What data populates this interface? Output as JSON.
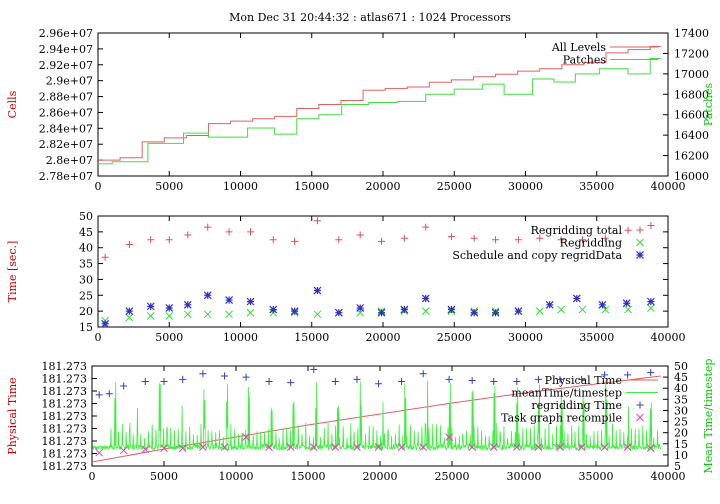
{
  "title": "Mon Dec 31 20:44:32 : atlas671 : 1024 Processors",
  "chart_data": [
    {
      "type": "line",
      "ylabel": "Cells",
      "y2label": "Patches",
      "ylabel_color": "#cc0000",
      "y2label_color": "#00cc00",
      "xlim": [
        0,
        40000
      ],
      "ylim": [
        27800000,
        29600000
      ],
      "y2lim": [
        16000,
        17400
      ],
      "xticks": [
        "0",
        "5000",
        "10000",
        "15000",
        "20000",
        "25000",
        "30000",
        "35000",
        "40000"
      ],
      "yticks": [
        "2.78e+07",
        "2.8e+07",
        "2.82e+07",
        "2.84e+07",
        "2.86e+07",
        "2.88e+07",
        "2.9e+07",
        "2.92e+07",
        "2.94e+07",
        "2.96e+07"
      ],
      "y2ticks": [
        "16000",
        "16200",
        "16400",
        "16600",
        "16800",
        "17000",
        "17200",
        "17400"
      ],
      "legend_position": "top-right",
      "series": [
        {
          "name": "All Levels",
          "axis": "left",
          "color": "#e06060",
          "step": true,
          "x": [
            0,
            1550,
            3100,
            4650,
            6200,
            7750,
            9300,
            10850,
            12400,
            13950,
            15500,
            17050,
            18600,
            20150,
            21700,
            23250,
            24800,
            26350,
            27900,
            29450,
            31000,
            32550,
            34100,
            35650,
            37200,
            38750,
            39500
          ],
          "y": [
            28000000,
            28030000,
            28230000,
            28280000,
            28310000,
            28460000,
            28490000,
            28520000,
            28550000,
            28650000,
            28700000,
            28750000,
            28880000,
            28900000,
            28920000,
            28980000,
            29010000,
            29050000,
            29080000,
            29120000,
            29150000,
            29200000,
            29230000,
            29350000,
            29390000,
            29430000,
            29430000
          ]
        },
        {
          "name": "Patches",
          "axis": "right",
          "color": "#40dd40",
          "step": true,
          "x": [
            0,
            1000,
            3500,
            6000,
            7750,
            10500,
            12400,
            13950,
            15500,
            17100,
            19000,
            21000,
            23000,
            25000,
            27000,
            28500,
            30500,
            32000,
            33500,
            35200,
            37200,
            38750,
            39500
          ],
          "y": [
            16120,
            16140,
            16320,
            16420,
            16380,
            16470,
            16410,
            16560,
            16600,
            16700,
            16720,
            16730,
            16800,
            16850,
            16900,
            16800,
            16950,
            16920,
            17000,
            17050,
            17000,
            17150,
            17150
          ]
        }
      ]
    },
    {
      "type": "scatter",
      "ylabel": "Time [sec.]",
      "ylabel_color": "#cc0000",
      "xlim": [
        0,
        40000
      ],
      "ylim": [
        15,
        50
      ],
      "xticks": [
        "0",
        "5000",
        "10000",
        "15000",
        "20000",
        "25000",
        "30000",
        "35000",
        "40000"
      ],
      "yticks": [
        "15",
        "20",
        "25",
        "30",
        "35",
        "40",
        "45",
        "50"
      ],
      "legend_position": "top-right",
      "series": [
        {
          "name": "Regridding total",
          "marker": "+",
          "color": "#e05050",
          "x": [
            500,
            2200,
            3700,
            5000,
            6300,
            7700,
            9200,
            10700,
            12300,
            13800,
            15400,
            16900,
            18400,
            19900,
            21500,
            23000,
            24800,
            26400,
            27900,
            29500,
            31000,
            32500,
            34000,
            35600,
            37200,
            38800
          ],
          "y": [
            37,
            41,
            42.5,
            42.5,
            44,
            46.5,
            45,
            45,
            42.5,
            42,
            48.5,
            42.5,
            44,
            42,
            43,
            46.5,
            43.5,
            43,
            42.5,
            42.5,
            43,
            42.5,
            42.5,
            43,
            45.5,
            47
          ]
        },
        {
          "name": "Regridding",
          "marker": "x",
          "color": "#30dd30",
          "x": [
            500,
            2200,
            3700,
            5000,
            6300,
            7700,
            9200,
            10700,
            12300,
            13800,
            15400,
            16900,
            18400,
            19900,
            21500,
            23000,
            24800,
            26400,
            27900,
            29500,
            31000,
            32500,
            34000,
            35600,
            37200,
            38800
          ],
          "y": [
            17,
            18,
            18.5,
            18.5,
            19,
            19,
            19,
            19.5,
            19.5,
            19.5,
            19,
            19.5,
            19.5,
            20,
            20,
            20,
            20,
            20,
            20,
            20,
            20,
            20.5,
            20.5,
            20.5,
            20.5,
            21
          ]
        },
        {
          "name": "Schedule and copy regridData",
          "marker": "*",
          "color": "#3030c0",
          "x": [
            500,
            2200,
            3700,
            5000,
            6300,
            7700,
            9200,
            10700,
            12300,
            13800,
            15400,
            16900,
            18400,
            19900,
            21500,
            23000,
            24800,
            26400,
            27900,
            29500,
            31700,
            33600,
            35400,
            37100,
            38800
          ],
          "y": [
            16,
            20,
            21.5,
            21,
            22,
            25,
            23.5,
            23,
            20.5,
            20,
            26.5,
            19.5,
            21,
            19.5,
            20.5,
            24,
            20.5,
            19.5,
            19.5,
            20,
            22,
            24,
            22,
            22.5,
            23
          ]
        }
      ]
    },
    {
      "type": "line",
      "ylabel": "Physical Time",
      "y2label": "Mean Time/timestep",
      "ylabel_color": "#cc0000",
      "y2label_color": "#00cc00",
      "xlim": [
        0,
        40000
      ],
      "y2lim": [
        5,
        50
      ],
      "xticks": [
        "0",
        "5000",
        "10000",
        "15000",
        "20000",
        "25000",
        "30000",
        "35000",
        "40000"
      ],
      "yticks": [
        "181.273",
        "181.273",
        "181.273",
        "181.273",
        "181.273",
        "181.273",
        "181.273",
        "181.273",
        "181.273"
      ],
      "y2ticks": [
        "5",
        "10",
        "15",
        "20",
        "25",
        "30",
        "35",
        "40",
        "45",
        "50"
      ],
      "legend_position": "top-right",
      "series": [
        {
          "name": "Physical Time",
          "axis": "left",
          "color": "#e06060",
          "x": [
            0,
            5000,
            10000,
            15000,
            20000,
            25000,
            30000,
            35000,
            39500
          ],
          "y_fraction": [
            0.04,
            0.17,
            0.29,
            0.41,
            0.52,
            0.63,
            0.73,
            0.82,
            0.9
          ]
        },
        {
          "name": "meanTime/timestep",
          "axis": "right",
          "color": "#40ee40",
          "baseline": 13.5,
          "spike_period": 260,
          "big_spike_interval": 1550,
          "big_spike_height": 30
        },
        {
          "name": "regridding Time",
          "marker": "+",
          "color": "#3040c0",
          "axis": "right",
          "x": [
            500,
            1200,
            2200,
            3700,
            5000,
            6300,
            7700,
            9200,
            10700,
            12300,
            13800,
            15400,
            16900,
            18400,
            19900,
            21500,
            23000,
            24800,
            26400,
            27900,
            29500,
            31000,
            32500,
            34000,
            35600,
            37200,
            38800
          ],
          "y": [
            37,
            37.5,
            41,
            43,
            43,
            44,
            46.5,
            45.5,
            45,
            43,
            42.5,
            48.5,
            43,
            44,
            42,
            43,
            46.5,
            44,
            43.5,
            43,
            43,
            44,
            44,
            44,
            46,
            46,
            47
          ]
        },
        {
          "name": "Task graph recompile",
          "marker": "x",
          "color": "#e040c0",
          "axis": "right",
          "x": [
            500,
            2200,
            3700,
            5000,
            6300,
            7700,
            9200,
            10700,
            12300,
            13800,
            15400,
            16900,
            18400,
            19900,
            21500,
            23000,
            24800,
            26400,
            27900,
            29500,
            31000,
            32500,
            34000,
            35600,
            37200,
            38800
          ],
          "y": [
            11,
            12,
            12.5,
            13,
            13,
            13.5,
            13.5,
            18,
            13.5,
            13.5,
            13.5,
            13.5,
            13.5,
            13.5,
            13.5,
            13.5,
            18,
            13.5,
            13.5,
            13.5,
            13.5,
            13.5,
            13.5,
            13.5,
            13.5,
            13
          ]
        }
      ]
    }
  ]
}
